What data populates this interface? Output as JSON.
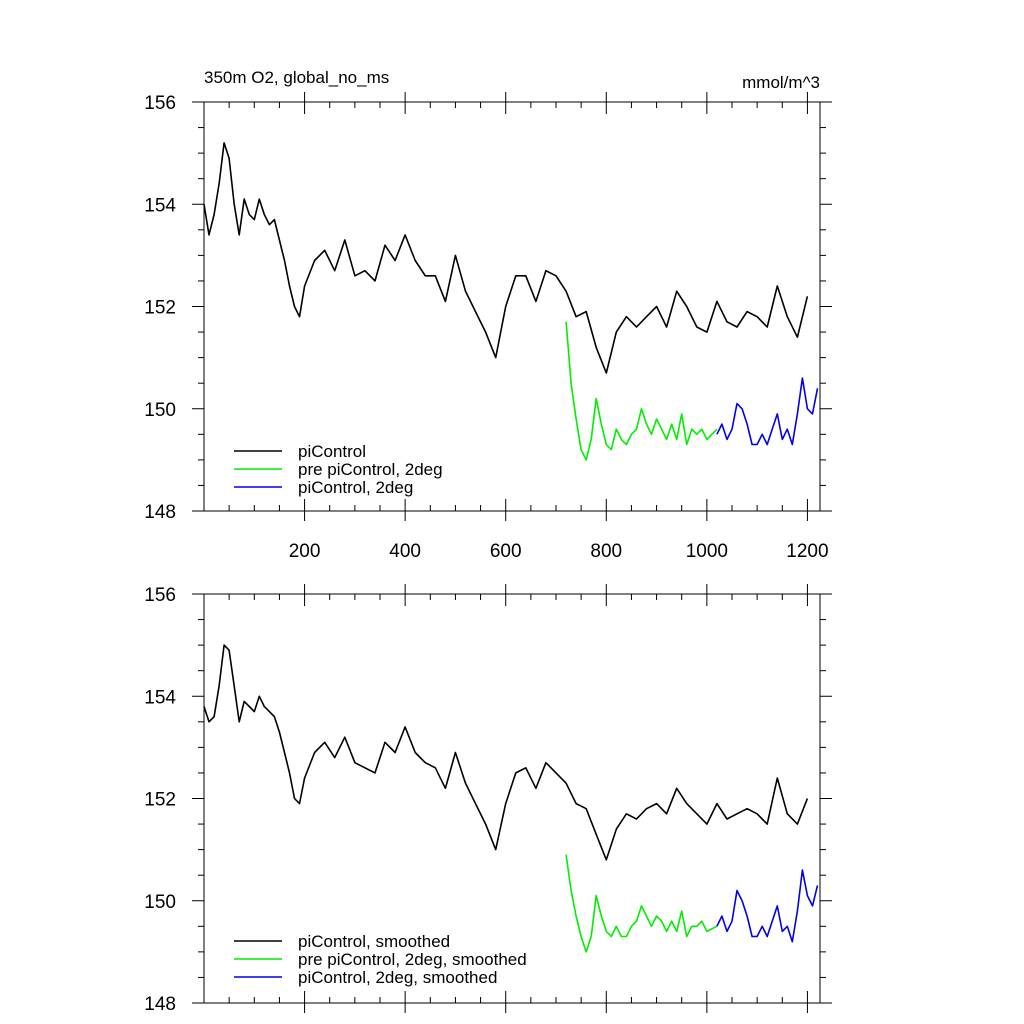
{
  "colors": {
    "picontrol": "#000000",
    "pre_picontrol_2deg": "#00ee00",
    "picontrol_2deg": "#0000ee"
  },
  "chart_data": [
    {
      "type": "line",
      "title": "350m O2, global_no_ms",
      "units": "mmol/m^3",
      "xlim": [
        0,
        1225
      ],
      "ylim": [
        148,
        156
      ],
      "xticks": [
        200,
        400,
        600,
        800,
        1000,
        1200
      ],
      "yticks": [
        148,
        150,
        152,
        154,
        156
      ],
      "grid": false,
      "legend_position": "bottom-left",
      "series": [
        {
          "name": "piControl",
          "color": "#000000",
          "x": [
            0,
            10,
            20,
            30,
            40,
            50,
            60,
            70,
            80,
            90,
            100,
            110,
            120,
            130,
            140,
            150,
            160,
            170,
            180,
            190,
            200,
            220,
            240,
            260,
            280,
            300,
            320,
            340,
            360,
            380,
            400,
            420,
            440,
            460,
            480,
            500,
            520,
            540,
            560,
            580,
            600,
            620,
            640,
            660,
            680,
            700,
            720,
            740,
            760,
            780,
            800,
            820,
            840,
            860,
            880,
            900,
            920,
            940,
            960,
            980,
            1000,
            1020,
            1040,
            1060,
            1080,
            1100,
            1120,
            1140,
            1160,
            1180,
            1200
          ],
          "y": [
            154.0,
            153.4,
            153.8,
            154.4,
            155.2,
            154.9,
            154.0,
            153.4,
            154.1,
            153.8,
            153.7,
            154.1,
            153.8,
            153.6,
            153.7,
            153.3,
            152.9,
            152.4,
            152.0,
            151.8,
            152.4,
            152.9,
            153.1,
            152.7,
            153.3,
            152.6,
            152.7,
            152.5,
            153.2,
            152.9,
            153.4,
            152.9,
            152.6,
            152.6,
            152.1,
            153.0,
            152.3,
            151.9,
            151.5,
            151.0,
            152.0,
            152.6,
            152.6,
            152.1,
            152.7,
            152.6,
            152.3,
            151.8,
            151.9,
            151.2,
            150.7,
            151.5,
            151.8,
            151.6,
            151.8,
            152.0,
            151.6,
            152.3,
            152.0,
            151.6,
            151.5,
            152.1,
            151.7,
            151.6,
            151.9,
            151.8,
            151.6,
            152.4,
            151.8,
            151.4,
            152.2
          ]
        },
        {
          "name": "pre piControl, 2deg",
          "color": "#00ee00",
          "x": [
            720,
            730,
            740,
            750,
            760,
            770,
            780,
            790,
            800,
            810,
            820,
            830,
            840,
            850,
            860,
            870,
            880,
            890,
            900,
            910,
            920,
            930,
            940,
            950,
            960,
            970,
            980,
            990,
            1000,
            1020
          ],
          "y": [
            151.7,
            150.5,
            149.8,
            149.2,
            149.0,
            149.4,
            150.2,
            149.7,
            149.3,
            149.2,
            149.6,
            149.4,
            149.3,
            149.5,
            149.6,
            150.0,
            149.7,
            149.5,
            149.8,
            149.6,
            149.4,
            149.7,
            149.4,
            149.9,
            149.3,
            149.6,
            149.5,
            149.6,
            149.4,
            149.6
          ]
        },
        {
          "name": "piControl, 2deg",
          "color": "#0000ee",
          "x": [
            1020,
            1030,
            1040,
            1050,
            1060,
            1070,
            1080,
            1090,
            1100,
            1110,
            1120,
            1130,
            1140,
            1150,
            1160,
            1170,
            1180,
            1190,
            1200,
            1210,
            1220
          ],
          "y": [
            149.5,
            149.7,
            149.4,
            149.6,
            150.1,
            150.0,
            149.7,
            149.3,
            149.3,
            149.5,
            149.3,
            149.6,
            149.9,
            149.4,
            149.6,
            149.3,
            149.9,
            150.6,
            150.0,
            149.9,
            150.4
          ]
        }
      ]
    },
    {
      "type": "line",
      "xlim": [
        0,
        1225
      ],
      "ylim": [
        148,
        156
      ],
      "xticks": [
        200,
        400,
        600,
        800,
        1000,
        1200
      ],
      "yticks": [
        148,
        150,
        152,
        154,
        156
      ],
      "grid": false,
      "legend_position": "bottom-left",
      "series": [
        {
          "name": "piControl, smoothed",
          "color": "#000000",
          "x": [
            0,
            10,
            20,
            30,
            40,
            50,
            60,
            70,
            80,
            90,
            100,
            110,
            120,
            130,
            140,
            150,
            160,
            170,
            180,
            190,
            200,
            220,
            240,
            260,
            280,
            300,
            320,
            340,
            360,
            380,
            400,
            420,
            440,
            460,
            480,
            500,
            520,
            540,
            560,
            580,
            600,
            620,
            640,
            660,
            680,
            700,
            720,
            740,
            760,
            780,
            800,
            820,
            840,
            860,
            880,
            900,
            920,
            940,
            960,
            980,
            1000,
            1020,
            1040,
            1060,
            1080,
            1100,
            1120,
            1140,
            1160,
            1180,
            1200
          ],
          "y": [
            153.8,
            153.5,
            153.6,
            154.2,
            155.0,
            154.9,
            154.2,
            153.5,
            153.9,
            153.8,
            153.7,
            154.0,
            153.8,
            153.7,
            153.6,
            153.3,
            152.9,
            152.5,
            152.0,
            151.9,
            152.4,
            152.9,
            153.1,
            152.8,
            153.2,
            152.7,
            152.6,
            152.5,
            153.1,
            152.9,
            153.4,
            152.9,
            152.7,
            152.6,
            152.2,
            152.9,
            152.3,
            151.9,
            151.5,
            151.0,
            151.9,
            152.5,
            152.6,
            152.2,
            152.7,
            152.5,
            152.3,
            151.9,
            151.8,
            151.3,
            150.8,
            151.4,
            151.7,
            151.6,
            151.8,
            151.9,
            151.7,
            152.2,
            151.9,
            151.7,
            151.5,
            151.9,
            151.6,
            151.7,
            151.8,
            151.7,
            151.5,
            152.4,
            151.7,
            151.5,
            152.0
          ]
        },
        {
          "name": "pre piControl, 2deg, smoothed",
          "color": "#00ee00",
          "x": [
            720,
            730,
            740,
            750,
            760,
            770,
            780,
            790,
            800,
            810,
            820,
            830,
            840,
            850,
            860,
            870,
            880,
            890,
            900,
            910,
            920,
            930,
            940,
            950,
            960,
            970,
            980,
            990,
            1000,
            1020
          ],
          "y": [
            150.9,
            150.2,
            149.7,
            149.3,
            149.0,
            149.3,
            150.1,
            149.7,
            149.4,
            149.3,
            149.5,
            149.3,
            149.3,
            149.5,
            149.6,
            149.9,
            149.7,
            149.5,
            149.7,
            149.6,
            149.4,
            149.6,
            149.4,
            149.8,
            149.3,
            149.5,
            149.5,
            149.6,
            149.4,
            149.5
          ]
        },
        {
          "name": "piControl, 2deg, smoothed",
          "color": "#0000ee",
          "x": [
            1020,
            1030,
            1040,
            1050,
            1060,
            1070,
            1080,
            1090,
            1100,
            1110,
            1120,
            1130,
            1140,
            1150,
            1160,
            1170,
            1180,
            1190,
            1200,
            1210,
            1220
          ],
          "y": [
            149.5,
            149.7,
            149.4,
            149.6,
            150.2,
            150.0,
            149.7,
            149.3,
            149.3,
            149.5,
            149.3,
            149.6,
            149.9,
            149.4,
            149.5,
            149.2,
            149.8,
            150.6,
            150.1,
            149.9,
            150.3
          ]
        }
      ]
    }
  ]
}
